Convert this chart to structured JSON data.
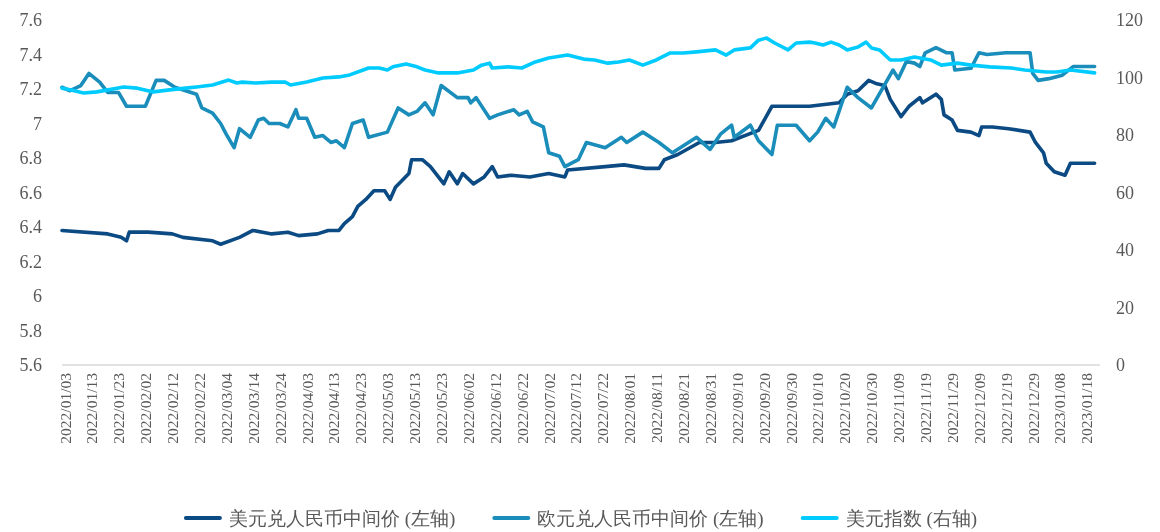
{
  "chart_data": {
    "type": "line",
    "xlim": [
      "2022-01-03",
      "2023-01-24"
    ],
    "xticks": [
      {
        "value": "2022-01-03",
        "label": "2022/01/03"
      },
      {
        "value": "2022-01-13",
        "label": "2022/01/13"
      },
      {
        "value": "2022-01-23",
        "label": "2022/01/23"
      },
      {
        "value": "2022-02-02",
        "label": "2022/02/02"
      },
      {
        "value": "2022-02-12",
        "label": "2022/02/12"
      },
      {
        "value": "2022-02-22",
        "label": "2022/02/22"
      },
      {
        "value": "2022-03-04",
        "label": "2022/03/04"
      },
      {
        "value": "2022-03-14",
        "label": "2022/03/14"
      },
      {
        "value": "2022-03-24",
        "label": "2022/03/24"
      },
      {
        "value": "2022-04-03",
        "label": "2022/04/03"
      },
      {
        "value": "2022-04-13",
        "label": "2022/04/13"
      },
      {
        "value": "2022-04-23",
        "label": "2022/04/23"
      },
      {
        "value": "2022-05-03",
        "label": "2022/05/03"
      },
      {
        "value": "2022-05-13",
        "label": "2022/05/13"
      },
      {
        "value": "2022-05-23",
        "label": "2022/05/23"
      },
      {
        "value": "2022-06-02",
        "label": "2022/06/02"
      },
      {
        "value": "2022-06-12",
        "label": "2022/06/12"
      },
      {
        "value": "2022-06-22",
        "label": "2022/06/22"
      },
      {
        "value": "2022-07-02",
        "label": "2022/07/02"
      },
      {
        "value": "2022-07-12",
        "label": "2022/07/12"
      },
      {
        "value": "2022-07-22",
        "label": "2022/07/22"
      },
      {
        "value": "2022-08-01",
        "label": "2022/08/01"
      },
      {
        "value": "2022-08-11",
        "label": "2022/08/11"
      },
      {
        "value": "2022-08-21",
        "label": "2022/08/21"
      },
      {
        "value": "2022-08-31",
        "label": "2022/08/31"
      },
      {
        "value": "2022-09-10",
        "label": "2022/09/10"
      },
      {
        "value": "2022-09-20",
        "label": "2022/09/20"
      },
      {
        "value": "2022-09-30",
        "label": "2022/09/30"
      },
      {
        "value": "2022-10-10",
        "label": "2022/10/10"
      },
      {
        "value": "2022-10-20",
        "label": "2022/10/20"
      },
      {
        "value": "2022-10-30",
        "label": "2022/10/30"
      },
      {
        "value": "2022-11-09",
        "label": "2022/11/09"
      },
      {
        "value": "2022-11-19",
        "label": "2022/11/19"
      },
      {
        "value": "2022-11-29",
        "label": "2022/11/29"
      },
      {
        "value": "2022-12-09",
        "label": "2022/12/09"
      },
      {
        "value": "2022-12-19",
        "label": "2022/12/19"
      },
      {
        "value": "2022-12-29",
        "label": "2022/12/29"
      },
      {
        "value": "2023-01-08",
        "label": "2023/01/08"
      },
      {
        "value": "2023-01-18",
        "label": "2023/01/18"
      }
    ],
    "ylim": [
      5.6,
      7.6
    ],
    "yticks": [
      5.6,
      5.8,
      6,
      6.2,
      6.4,
      6.6,
      6.8,
      7,
      7.2,
      7.4,
      7.6
    ],
    "y2lim": [
      0,
      120
    ],
    "y2ticks": [
      0,
      20,
      40,
      60,
      80,
      100,
      120
    ],
    "legend": "bottom",
    "series": [
      {
        "name": "美元兑人民币中间价 (左轴)",
        "color": "#0b4a82",
        "axis": "y",
        "x": [
          "2022-01-03",
          "2022-01-20",
          "2022-01-25",
          "2022-01-27",
          "2022-01-28",
          "2022-02-04",
          "2022-02-13",
          "2022-02-17",
          "2022-02-28",
          "2022-03-03",
          "2022-03-10",
          "2022-03-15",
          "2022-03-22",
          "2022-03-28",
          "2022-04-01",
          "2022-04-08",
          "2022-04-12",
          "2022-04-16",
          "2022-04-18",
          "2022-04-21",
          "2022-04-23",
          "2022-04-26",
          "2022-04-29",
          "2022-05-03",
          "2022-05-05",
          "2022-05-07",
          "2022-05-12",
          "2022-05-13",
          "2022-05-17",
          "2022-05-20",
          "2022-05-25",
          "2022-05-27",
          "2022-05-30",
          "2022-06-01",
          "2022-06-05",
          "2022-06-09",
          "2022-06-12",
          "2022-06-14",
          "2022-06-19",
          "2022-06-26",
          "2022-07-03",
          "2022-07-09",
          "2022-07-10",
          "2022-07-24",
          "2022-07-31",
          "2022-08-08",
          "2022-08-13",
          "2022-08-15",
          "2022-08-20",
          "2022-08-28",
          "2022-09-03",
          "2022-09-09",
          "2022-09-19",
          "2022-09-24",
          "2022-10-08",
          "2022-10-19",
          "2022-10-22",
          "2022-10-26",
          "2022-10-30",
          "2022-11-02",
          "2022-11-05",
          "2022-11-07",
          "2022-11-11",
          "2022-11-14",
          "2022-11-18",
          "2022-11-19",
          "2022-11-24",
          "2022-11-26",
          "2022-11-27",
          "2022-11-30",
          "2022-12-02",
          "2022-12-07",
          "2022-12-10",
          "2022-12-11",
          "2022-12-15",
          "2022-12-21",
          "2022-12-29",
          "2022-12-31",
          "2023-01-03",
          "2023-01-04",
          "2023-01-07",
          "2023-01-11",
          "2023-01-13",
          "2023-01-22"
        ],
        "values": [
          6.38,
          6.36,
          6.34,
          6.32,
          6.37,
          6.37,
          6.36,
          6.34,
          6.32,
          6.3,
          6.34,
          6.38,
          6.36,
          6.37,
          6.35,
          6.36,
          6.38,
          6.38,
          6.42,
          6.46,
          6.52,
          6.56,
          6.61,
          6.61,
          6.56,
          6.63,
          6.71,
          6.79,
          6.79,
          6.75,
          6.65,
          6.72,
          6.65,
          6.71,
          6.65,
          6.69,
          6.75,
          6.69,
          6.7,
          6.69,
          6.71,
          6.69,
          6.73,
          6.75,
          6.76,
          6.74,
          6.74,
          6.79,
          6.82,
          6.89,
          6.89,
          6.9,
          6.96,
          7.1,
          7.1,
          7.12,
          7.17,
          7.19,
          7.25,
          7.23,
          7.22,
          7.14,
          7.04,
          7.1,
          7.15,
          7.12,
          7.17,
          7.14,
          7.05,
          7.02,
          6.96,
          6.95,
          6.93,
          6.98,
          6.98,
          6.97,
          6.95,
          6.89,
          6.83,
          6.77,
          6.72,
          6.7,
          6.77,
          6.77
        ]
      },
      {
        "name": "欧元兑人民币中间价 (左轴)",
        "color": "#1a8dbb",
        "axis": "y",
        "x": [
          "2022-01-03",
          "2022-01-06",
          "2022-01-10",
          "2022-01-13",
          "2022-01-17",
          "2022-01-20",
          "2022-01-24",
          "2022-01-27",
          "2022-02-03",
          "2022-02-07",
          "2022-02-10",
          "2022-02-14",
          "2022-02-16",
          "2022-02-20",
          "2022-02-22",
          "2022-02-24",
          "2022-02-28",
          "2022-03-03",
          "2022-03-05",
          "2022-03-08",
          "2022-03-10",
          "2022-03-14",
          "2022-03-17",
          "2022-03-19",
          "2022-03-21",
          "2022-03-25",
          "2022-03-28",
          "2022-03-31",
          "2022-04-01",
          "2022-04-04",
          "2022-04-07",
          "2022-04-10",
          "2022-04-13",
          "2022-04-15",
          "2022-04-18",
          "2022-04-21",
          "2022-04-25",
          "2022-04-27",
          "2022-05-04",
          "2022-05-08",
          "2022-05-12",
          "2022-05-15",
          "2022-05-18",
          "2022-05-21",
          "2022-05-24",
          "2022-05-30",
          "2022-06-03",
          "2022-06-04",
          "2022-06-06",
          "2022-06-11",
          "2022-06-14",
          "2022-06-20",
          "2022-06-22",
          "2022-06-25",
          "2022-06-27",
          "2022-07-01",
          "2022-07-03",
          "2022-07-07",
          "2022-07-09",
          "2022-07-14",
          "2022-07-17",
          "2022-07-24",
          "2022-07-30",
          "2022-08-01",
          "2022-08-07",
          "2022-08-13",
          "2022-08-18",
          "2022-08-27",
          "2022-09-01",
          "2022-09-05",
          "2022-09-09",
          "2022-09-10",
          "2022-09-16",
          "2022-09-19",
          "2022-09-24",
          "2022-09-26",
          "2022-10-03",
          "2022-10-08",
          "2022-10-11",
          "2022-10-14",
          "2022-10-17",
          "2022-10-22",
          "2022-10-26",
          "2022-10-31",
          "2022-11-08",
          "2022-11-10",
          "2022-11-13",
          "2022-11-16",
          "2022-11-18",
          "2022-11-20",
          "2022-11-24",
          "2022-11-28",
          "2022-11-30",
          "2022-12-01",
          "2022-12-07",
          "2022-12-10",
          "2022-12-13",
          "2022-12-20",
          "2022-12-26",
          "2022-12-29",
          "2022-12-30",
          "2023-01-01",
          "2023-01-05",
          "2023-01-10",
          "2023-01-14",
          "2023-01-22"
        ],
        "values": [
          7.21,
          7.19,
          7.22,
          7.29,
          7.24,
          7.18,
          7.18,
          7.1,
          7.1,
          7.25,
          7.25,
          7.21,
          7.2,
          7.18,
          7.17,
          7.09,
          7.06,
          7.0,
          6.94,
          6.86,
          6.97,
          6.92,
          7.02,
          7.03,
          7.0,
          7.0,
          6.98,
          7.08,
          7.03,
          7.03,
          6.92,
          6.93,
          6.89,
          6.9,
          6.86,
          7.0,
          7.02,
          6.92,
          6.95,
          7.09,
          7.05,
          7.07,
          7.12,
          7.05,
          7.22,
          7.15,
          7.15,
          7.12,
          7.15,
          7.03,
          7.05,
          7.08,
          7.05,
          7.07,
          7.01,
          6.98,
          6.83,
          6.81,
          6.75,
          6.79,
          6.89,
          6.86,
          6.92,
          6.89,
          6.95,
          6.89,
          6.83,
          6.92,
          6.85,
          6.94,
          6.99,
          6.92,
          6.99,
          6.9,
          6.82,
          6.99,
          6.99,
          6.9,
          6.95,
          7.03,
          6.98,
          7.21,
          7.15,
          7.09,
          7.31,
          7.26,
          7.36,
          7.35,
          7.33,
          7.41,
          7.44,
          7.41,
          7.41,
          7.31,
          7.32,
          7.41,
          7.4,
          7.41,
          7.41,
          7.41,
          7.29,
          7.25,
          7.26,
          7.28,
          7.33,
          7.33
        ]
      },
      {
        "name": "美元指数 (右轴)",
        "color": "#00cbff",
        "axis": "y2",
        "x": [
          "2022-01-03",
          "2022-01-06",
          "2022-01-11",
          "2022-01-16",
          "2022-01-26",
          "2022-01-31",
          "2022-02-06",
          "2022-02-12",
          "2022-02-18",
          "2022-02-22",
          "2022-02-28",
          "2022-03-06",
          "2022-03-09",
          "2022-03-11",
          "2022-03-16",
          "2022-03-22",
          "2022-03-27",
          "2022-03-29",
          "2022-04-04",
          "2022-04-10",
          "2022-04-16",
          "2022-04-20",
          "2022-04-25",
          "2022-04-27",
          "2022-05-01",
          "2022-05-04",
          "2022-05-06",
          "2022-05-11",
          "2022-05-15",
          "2022-05-18",
          "2022-05-23",
          "2022-05-30",
          "2022-06-05",
          "2022-06-08",
          "2022-06-11",
          "2022-06-12",
          "2022-06-18",
          "2022-06-23",
          "2022-06-28",
          "2022-07-03",
          "2022-07-10",
          "2022-07-16",
          "2022-07-20",
          "2022-07-25",
          "2022-07-29",
          "2022-08-02",
          "2022-08-07",
          "2022-08-12",
          "2022-08-17",
          "2022-08-22",
          "2022-08-27",
          "2022-09-03",
          "2022-09-07",
          "2022-09-10",
          "2022-09-16",
          "2022-09-19",
          "2022-09-22",
          "2022-09-25",
          "2022-09-30",
          "2022-10-03",
          "2022-10-08",
          "2022-10-10",
          "2022-10-13",
          "2022-10-16",
          "2022-10-19",
          "2022-10-22",
          "2022-10-26",
          "2022-10-29",
          "2022-10-31",
          "2022-11-03",
          "2022-11-07",
          "2022-11-11",
          "2022-11-16",
          "2022-11-22",
          "2022-11-26",
          "2022-12-02",
          "2022-12-07",
          "2022-12-14",
          "2022-12-22",
          "2022-12-27",
          "2023-01-04",
          "2023-01-08",
          "2023-01-13",
          "2023-01-22"
        ],
        "values": [
          96.3,
          95.7,
          94.6,
          95.0,
          96.7,
          96.3,
          95.0,
          95.7,
          96.3,
          96.7,
          97.4,
          99.1,
          98.1,
          98.4,
          98.1,
          98.4,
          98.4,
          97.4,
          98.4,
          99.8,
          100.2,
          100.9,
          102.6,
          103.3,
          103.3,
          102.6,
          103.7,
          104.7,
          103.7,
          102.6,
          101.6,
          101.6,
          102.6,
          104.3,
          105.0,
          103.3,
          103.7,
          103.3,
          105.4,
          106.8,
          107.8,
          106.4,
          106.1,
          105.0,
          105.4,
          106.1,
          104.3,
          106.1,
          108.5,
          108.5,
          108.9,
          109.6,
          107.8,
          109.6,
          110.3,
          113.0,
          113.7,
          112.0,
          109.6,
          112.0,
          112.3,
          112.0,
          111.3,
          112.3,
          111.3,
          109.6,
          110.6,
          112.3,
          110.3,
          109.6,
          106.1,
          106.1,
          107.1,
          106.1,
          104.3,
          105.0,
          104.3,
          103.7,
          103.3,
          102.6,
          101.9,
          101.9,
          102.6,
          101.6
        ]
      }
    ]
  }
}
